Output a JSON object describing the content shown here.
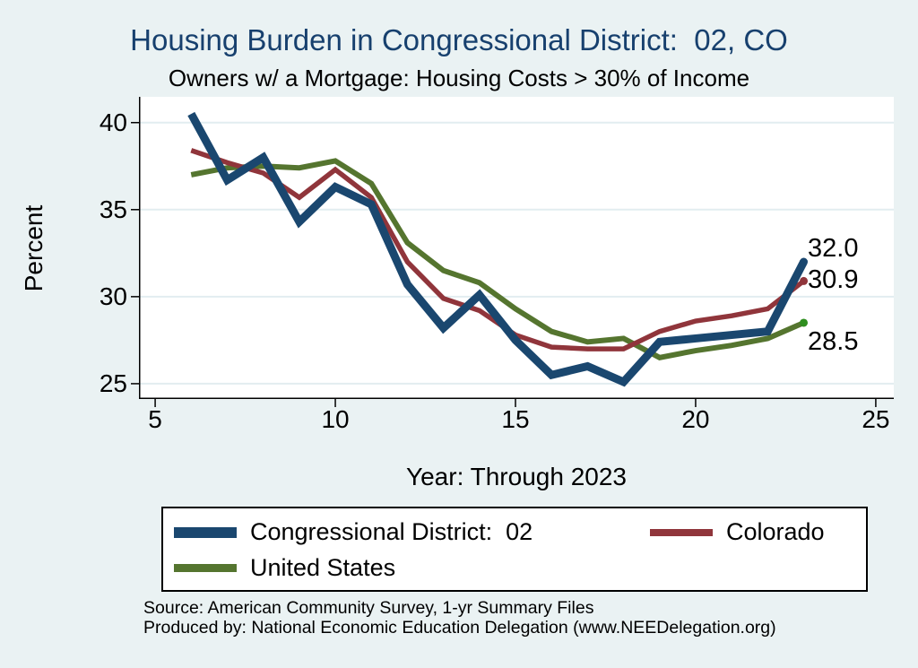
{
  "title": "Housing Burden in Congressional District:  02, CO",
  "subtitle": "Owners w/ a Mortgage: Housing Costs > 30% of Income",
  "colors": {
    "background": "#eaf2f3",
    "plot_background": "#ffffff",
    "gridline": "#e2edf0",
    "axis": "#000000",
    "title_text": "#17406e",
    "cd": "#1a476f",
    "state": "#90353b",
    "us": "#55752f",
    "us_end_marker": "#2f8e1f"
  },
  "footer": {
    "line1": "Source: American Community Survey, 1-yr Summary Files",
    "line2": "Produced by: National Economic Education Delegation (www.NEEDelegation.org)"
  },
  "chart_data": {
    "type": "line",
    "title": "Housing Burden in Congressional District:  02, CO",
    "subtitle": "Owners w/ a Mortgage: Housing Costs > 30% of Income",
    "xlabel": "Year: Through 2023",
    "ylabel": "Percent",
    "x": [
      6,
      7,
      8,
      9,
      10,
      11,
      12,
      13,
      14,
      15,
      16,
      17,
      18,
      19,
      20,
      21,
      22,
      23
    ],
    "xticks": [
      5,
      10,
      15,
      20,
      25
    ],
    "yticks": [
      25,
      30,
      35,
      40
    ],
    "xlim": [
      4.55,
      25.5
    ],
    "ylim": [
      24.12,
      41.48
    ],
    "grid": "horizontal",
    "legend_position": "bottom",
    "series": [
      {
        "name": "Congressional District:  02",
        "color": "#1a476f",
        "line_width": 9,
        "end_label": "32.0",
        "values": [
          40.5,
          36.7,
          38.0,
          34.3,
          36.3,
          35.3,
          30.7,
          28.2,
          30.1,
          27.5,
          25.5,
          26.0,
          25.1,
          27.4,
          27.6,
          27.8,
          28.0,
          32.0
        ]
      },
      {
        "name": "Colorado",
        "color": "#90353b",
        "line_width": 5.5,
        "end_label": "30.9",
        "values": [
          38.4,
          37.7,
          37.1,
          35.7,
          37.3,
          35.7,
          32.0,
          29.9,
          29.2,
          27.8,
          27.1,
          27.0,
          27.0,
          28.0,
          28.6,
          28.9,
          29.3,
          30.9
        ]
      },
      {
        "name": "United States",
        "color": "#55752f",
        "marker_color": "#2f8e1f",
        "line_width": 6,
        "end_label": "28.5",
        "values": [
          37.0,
          37.4,
          37.5,
          37.4,
          37.8,
          36.5,
          33.1,
          31.5,
          30.8,
          29.3,
          28.0,
          27.4,
          27.6,
          26.5,
          26.9,
          27.2,
          27.6,
          28.5
        ]
      }
    ]
  }
}
